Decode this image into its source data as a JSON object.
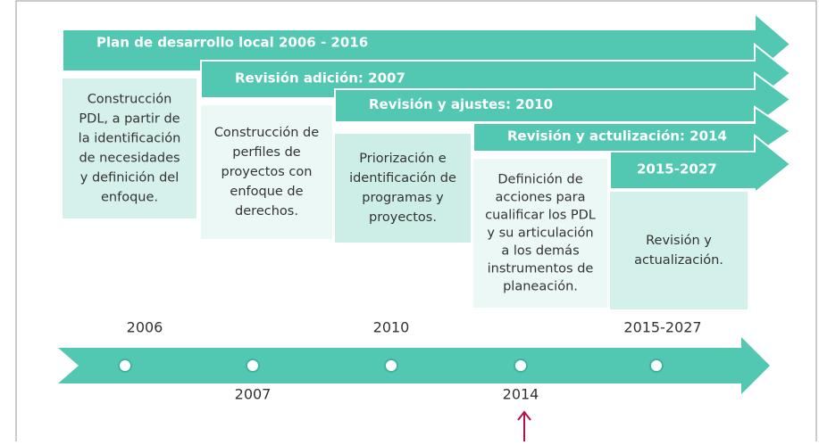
{
  "phases": [
    {
      "label": "Plan de desarrollo local 2006 - 2016",
      "lines": [
        "Construcción",
        "PDL, a partir de",
        "la identificación",
        "de necesidades",
        "y definición del",
        "enfoque."
      ]
    },
    {
      "label": "Revisión adición: 2007",
      "lines": [
        "Construcción de",
        "perfiles de",
        "proyectos con",
        "enfoque de",
        "derechos."
      ]
    },
    {
      "label": "Revisión y ajustes: 2010",
      "lines": [
        "Priorización e",
        "identificación de",
        "programas y",
        "proyectos."
      ]
    },
    {
      "label": "Revisión y actulización: 2014",
      "lines": [
        "Definición de",
        "acciones para",
        "cualificar los PDL",
        "y su articulación",
        "a los demás",
        "instrumentos de",
        "planeación."
      ]
    },
    {
      "label": "2015-2027",
      "lines": [
        "Revisión y",
        "actualización."
      ]
    }
  ],
  "timeline": [
    "2006",
    "2007",
    "2010",
    "2014",
    "2015-2027"
  ]
}
